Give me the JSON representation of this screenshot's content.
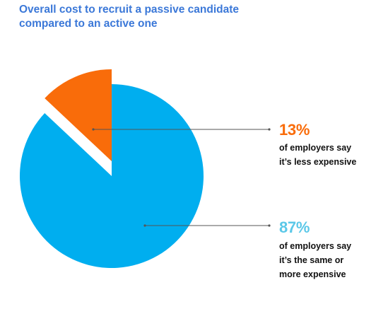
{
  "title_lines": [
    "Overall cost to recruit a passive candidate",
    "compared to an active one"
  ],
  "colors": {
    "title": "#3b78d8",
    "less_expensive": "#f96c0a",
    "same_or_more": "#00aeef",
    "same_or_more_label": "#5bc8e8",
    "leader_line": "#555555"
  },
  "chart_data": {
    "type": "pie",
    "title": "Overall cost to recruit a passive candidate compared to an active one",
    "slices": [
      {
        "label": "of employers say it's less expensive",
        "value": 13,
        "display": "13%",
        "desc_lines": [
          "of employers say",
          "it’s less expensive"
        ],
        "color": "#f96c0a",
        "exploded": true
      },
      {
        "label": "of employers say it's the same or more expensive",
        "value": 87,
        "display": "87%",
        "desc_lines": [
          "of employers say",
          "it’s the same or",
          "more expensive"
        ],
        "color": "#00aeef",
        "exploded": false
      }
    ],
    "legend": "none"
  }
}
